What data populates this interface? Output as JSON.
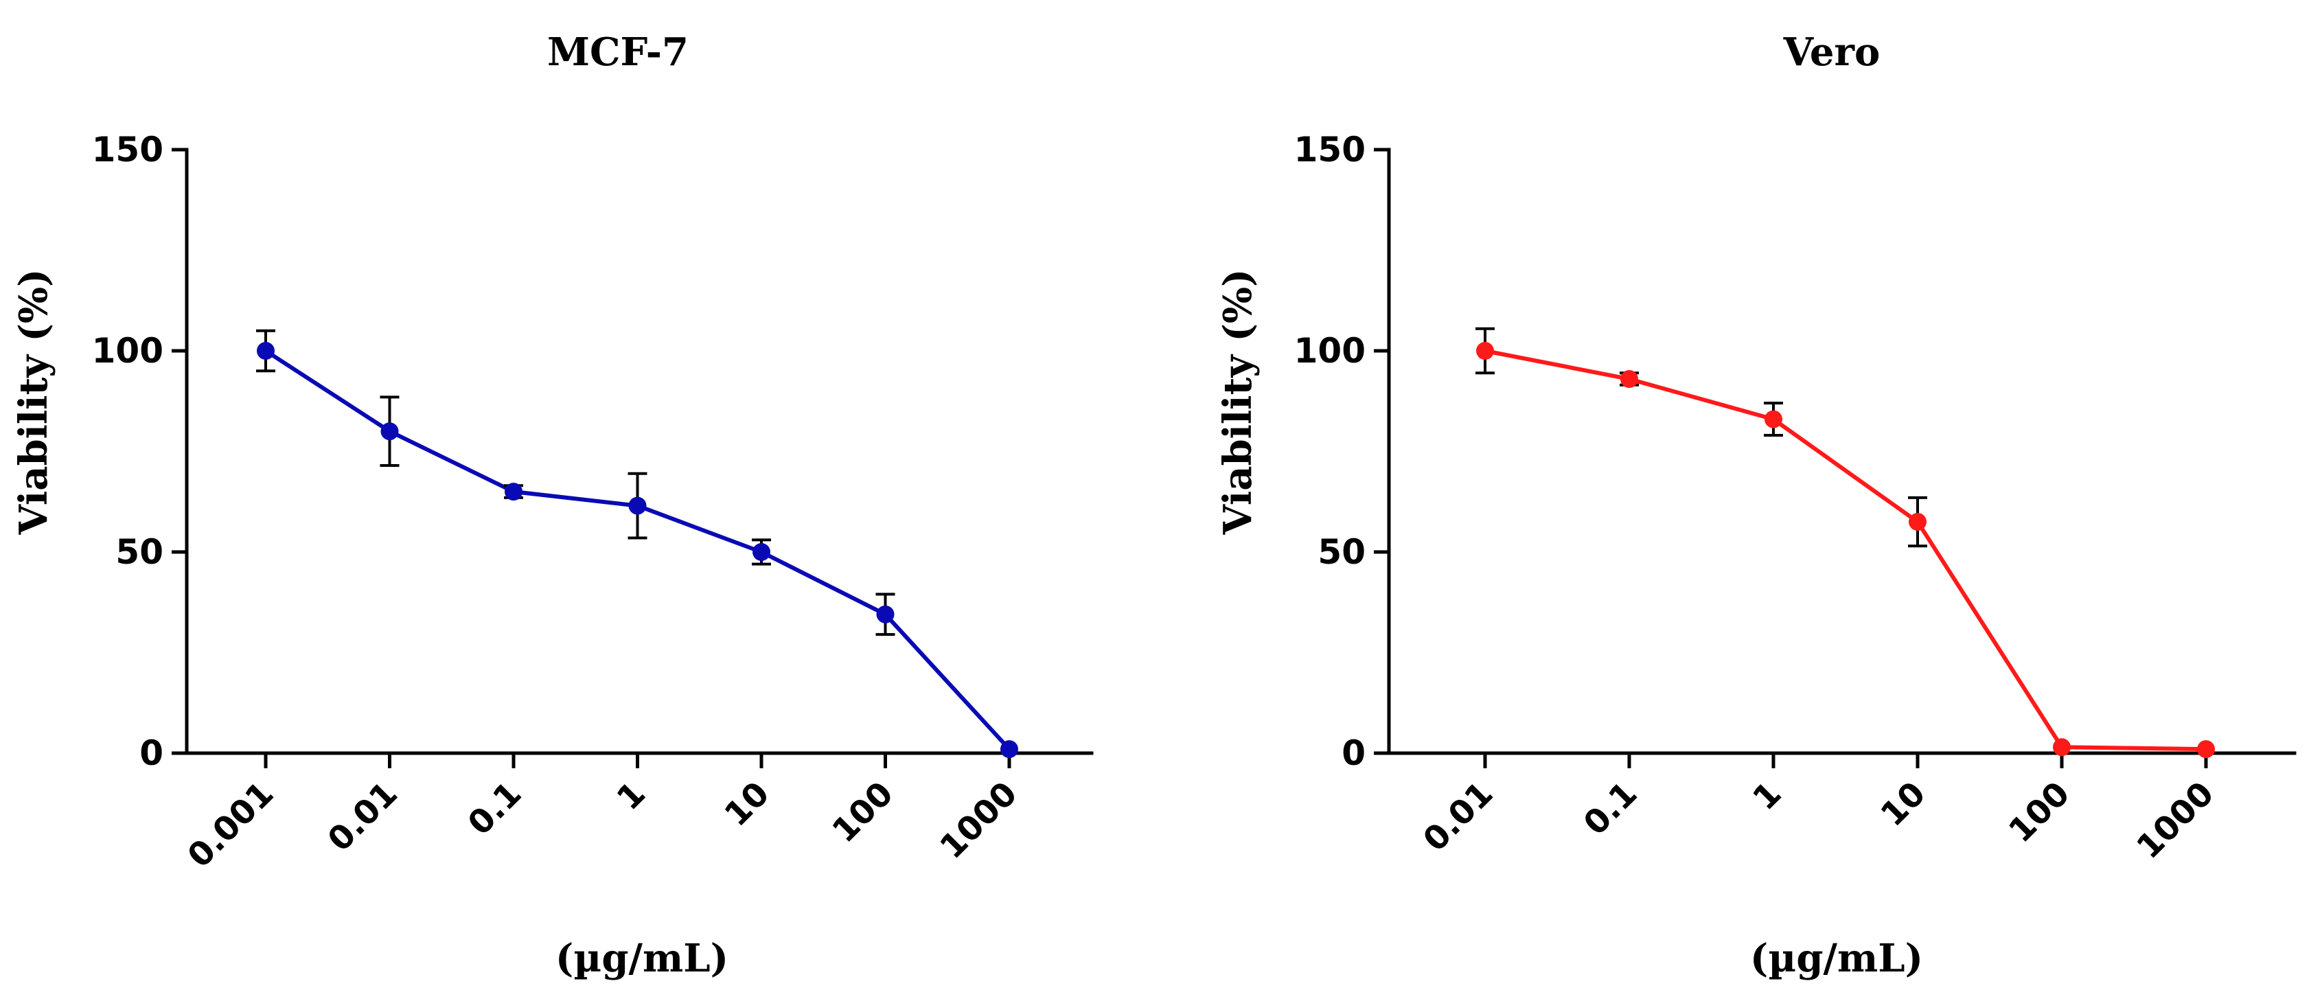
{
  "chart_data": [
    {
      "type": "line",
      "title": "MCF-7",
      "xlabel": "(µg/mL)",
      "ylabel": "Viability (%)",
      "ylim": [
        0,
        150
      ],
      "yticks": [
        0,
        50,
        100,
        150
      ],
      "categories": [
        "0.001",
        "0.01",
        "0.1",
        "1",
        "10",
        "100",
        "1000"
      ],
      "grid": false,
      "series": [
        {
          "name": "MCF-7",
          "color": "#0a0ab4",
          "values": [
            100,
            80,
            65,
            61.5,
            50,
            34.5,
            1
          ],
          "errors": [
            5,
            8.5,
            1.5,
            8,
            3,
            5,
            0
          ]
        }
      ]
    },
    {
      "type": "line",
      "title": "Vero",
      "xlabel": "(µg/mL)",
      "ylabel": "Viability (%)",
      "ylim": [
        0,
        150
      ],
      "yticks": [
        0,
        50,
        100,
        150
      ],
      "categories": [
        "0.01",
        "0.1",
        "1",
        "10",
        "100",
        "1000"
      ],
      "grid": false,
      "series": [
        {
          "name": "Vero",
          "color": "#ff1a1a",
          "values": [
            100,
            93,
            83,
            57.5,
            1.5,
            1
          ],
          "errors": [
            5.5,
            1.5,
            4,
            6,
            0,
            0
          ]
        }
      ]
    }
  ]
}
